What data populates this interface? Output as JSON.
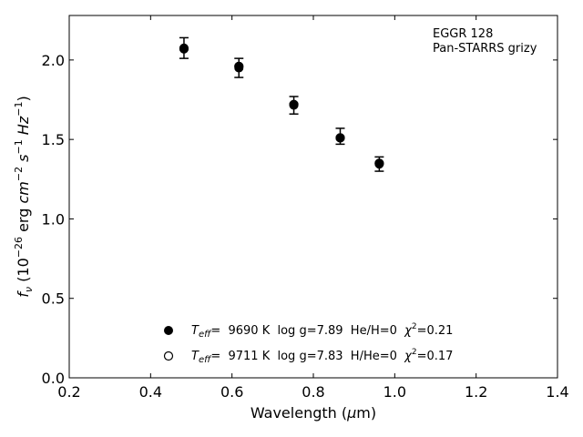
{
  "chart_data": {
    "type": "scatter",
    "xlabel": "Wavelength (μm)",
    "ylabel": "fν (10⁻²⁶ erg cm⁻² s⁻¹ Hz⁻¹)",
    "xlim": [
      0.2,
      1.4
    ],
    "ylim": [
      0.0,
      2.28
    ],
    "x_ticks": [
      "0.2",
      "0.4",
      "0.6",
      "0.8",
      "1.0",
      "1.2",
      "1.4"
    ],
    "y_ticks": [
      "0.0",
      "0.5",
      "1.0",
      "1.5",
      "2.0"
    ],
    "grid": false,
    "annotation": {
      "line1": "EGGR 128",
      "line2": "Pan-STARRS grizy"
    },
    "observed": {
      "x": [
        0.482,
        0.617,
        0.752,
        0.866,
        0.962
      ],
      "y": [
        2.075,
        1.95,
        1.715,
        1.51,
        1.345
      ],
      "yerr_low": [
        2.01,
        1.89,
        1.66,
        1.47,
        1.3
      ],
      "yerr_high": [
        2.14,
        2.01,
        1.77,
        1.57,
        1.39
      ]
    },
    "series": [
      {
        "marker": "filled-circle",
        "x": [
          0.482,
          0.617,
          0.752,
          0.866,
          0.962
        ],
        "y": [
          2.07,
          1.96,
          1.72,
          1.51,
          1.35
        ]
      },
      {
        "marker": "open-circle",
        "x": [
          0.482,
          0.617,
          0.752,
          0.866,
          0.962
        ],
        "y": [
          2.07,
          1.96,
          1.72,
          1.51,
          1.35
        ]
      }
    ],
    "legend": {
      "placement": "lower-center",
      "entries": [
        {
          "teff_sym": "T",
          "teff_sub": "eff",
          "eq": "=  9690 K  log g=7.89  He/H=0  ",
          "chi": "χ",
          "chi_sup": "2",
          "chi_val": "=0.21"
        },
        {
          "teff_sym": "T",
          "teff_sub": "eff",
          "eq": "=  9711 K  log g=7.83  H/He=0  ",
          "chi": "χ",
          "chi_sup": "2",
          "chi_val": "=0.17"
        }
      ]
    }
  }
}
